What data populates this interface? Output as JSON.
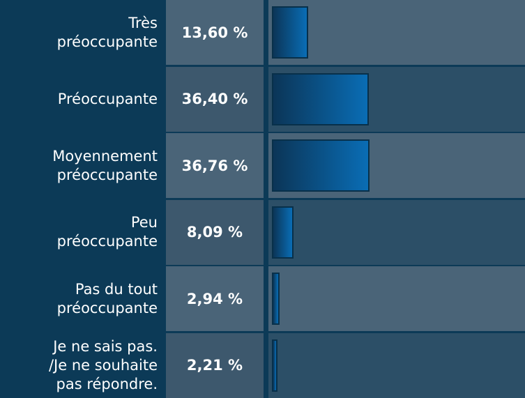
{
  "chart_data": {
    "type": "bar",
    "orientation": "horizontal",
    "categories": [
      "Très préoccupante",
      "Préoccupante",
      "Moyennement préoccupante",
      "Peu préoccupante",
      "Pas du tout préoccupante",
      "Je ne sais pas. /Je ne souhaite pas répondre."
    ],
    "values": [
      13.6,
      36.4,
      36.76,
      8.09,
      2.94,
      2.21
    ],
    "value_labels": [
      "13,60 %",
      "36,40 %",
      "36,76 %",
      "8,09 %",
      "2,94 %",
      "2,21 %"
    ]
  }
}
